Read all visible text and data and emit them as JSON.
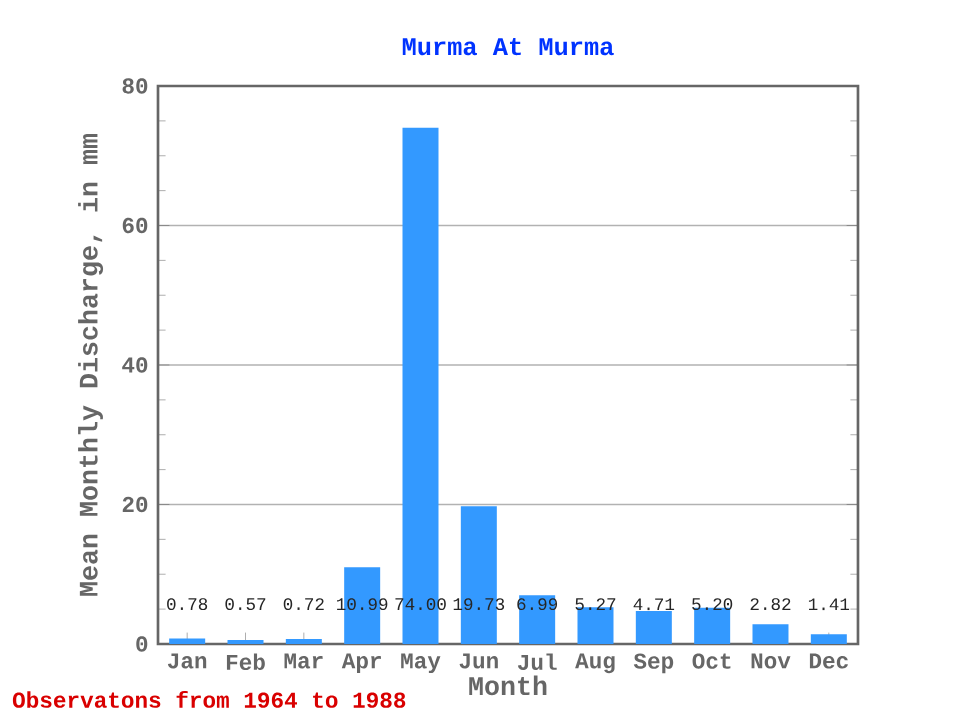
{
  "chart_data": {
    "type": "bar",
    "title": "Murma At Murma",
    "xlabel": "Month",
    "ylabel": "Mean Monthly Discharge, in mm",
    "annotations": [
      "Observatons from 1964 to 1988"
    ],
    "categories": [
      "Jan",
      "Feb",
      "Mar",
      "Apr",
      "May",
      "Jun",
      "Jul",
      "Aug",
      "Sep",
      "Oct",
      "Nov",
      "Dec"
    ],
    "values": [
      0.78,
      0.57,
      0.72,
      10.99,
      74.0,
      19.73,
      6.99,
      5.27,
      4.71,
      5.2,
      2.82,
      1.41
    ],
    "value_labels": [
      "0.78",
      "0.57",
      "0.72",
      "10.99",
      "74.00",
      "19.73",
      "6.99",
      "5.27",
      "4.71",
      "5.20",
      "2.82",
      "1.41"
    ],
    "color": "#3399ff",
    "ylim": [
      0,
      80
    ],
    "yticks": [
      0,
      20,
      40,
      60,
      80
    ],
    "grid": "y"
  }
}
